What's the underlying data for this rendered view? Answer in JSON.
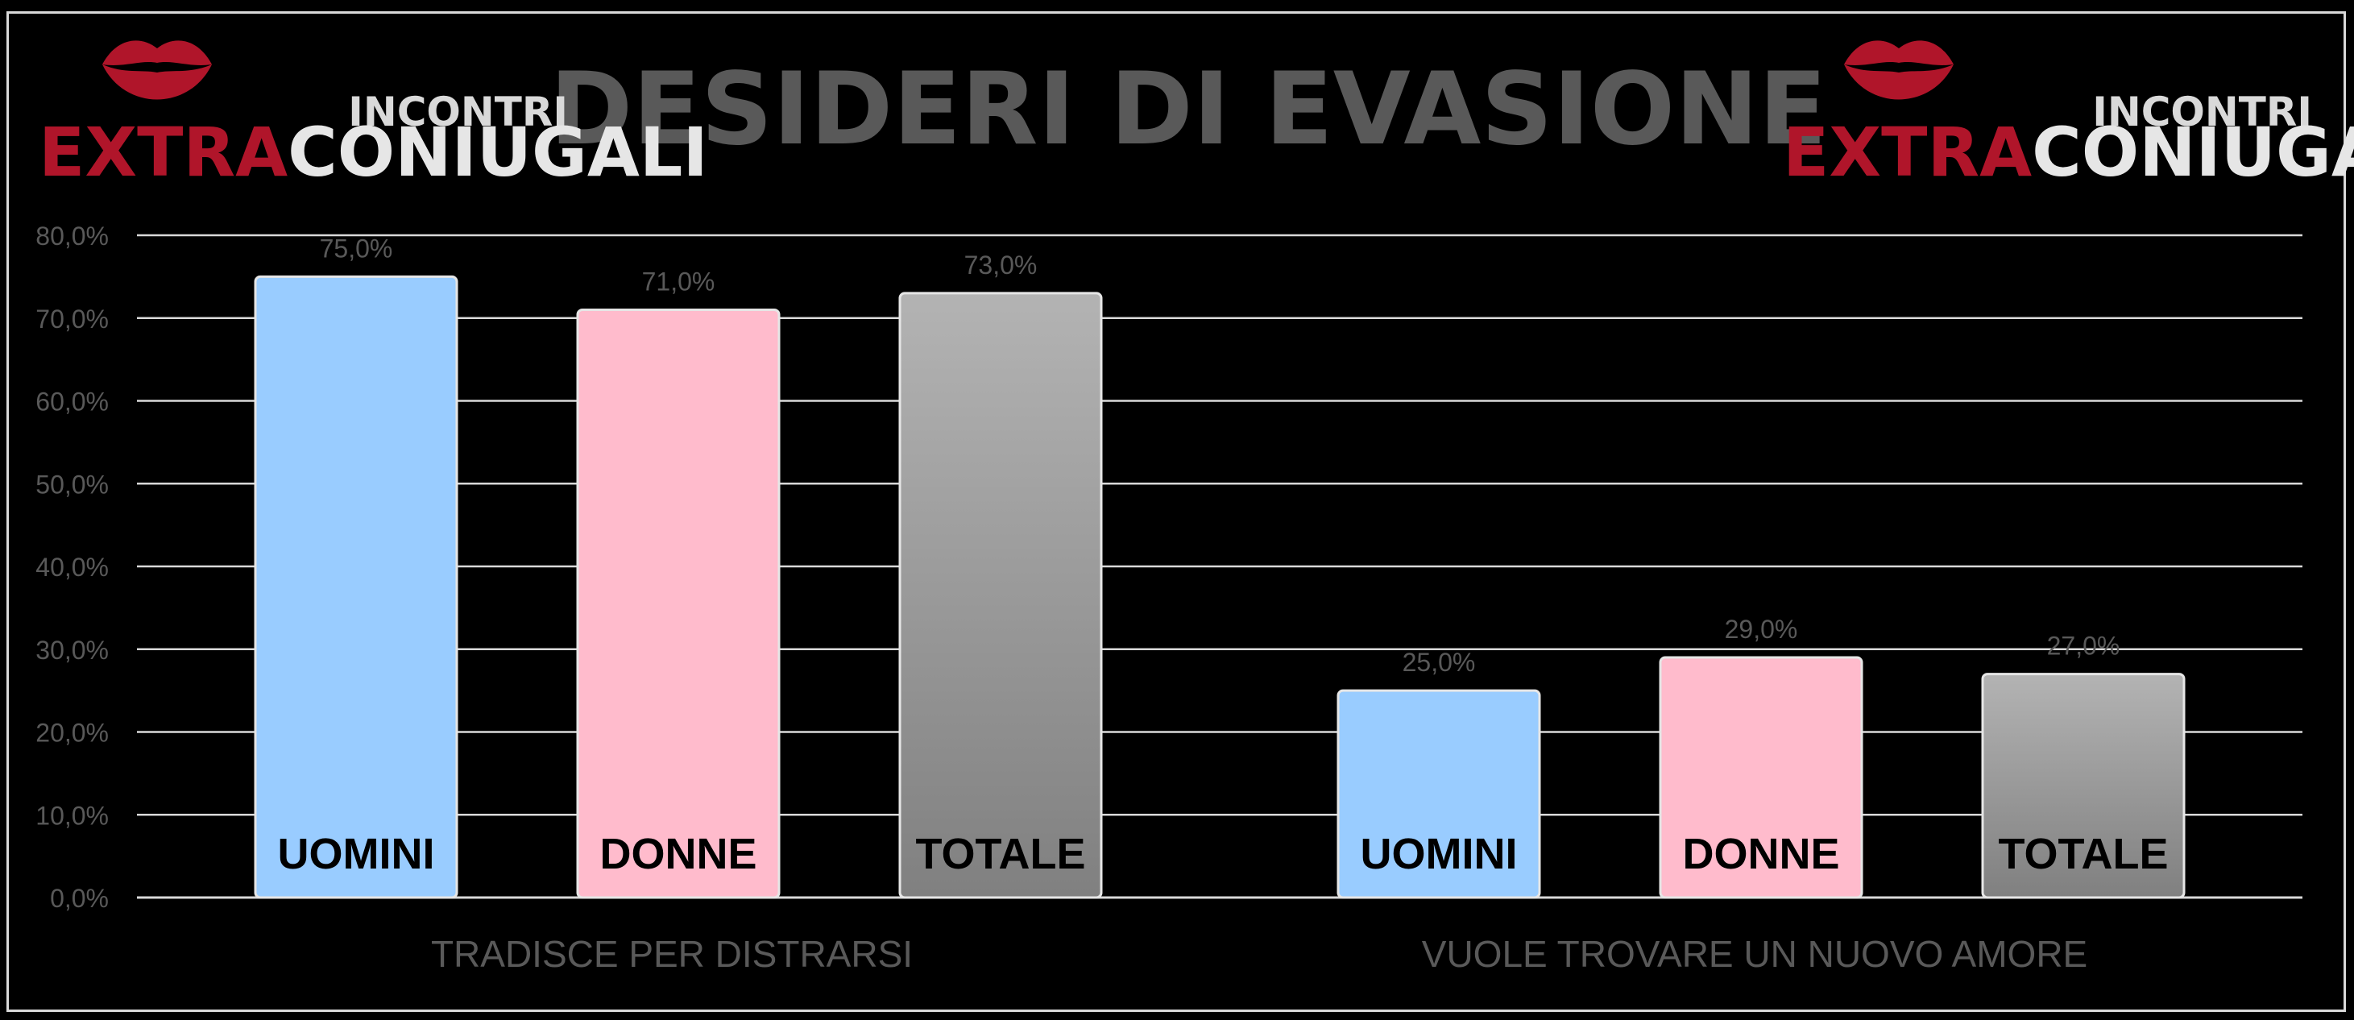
{
  "title": "DESIDERI DI EVASIONE",
  "logo": {
    "top_word": "INCONTRI",
    "word_red": "EXTRA",
    "word_white": "CONIUGALI"
  },
  "colors": {
    "uomini": "#99ccff",
    "donne": "#ffbbcc",
    "totale_top": "#b3b3b3",
    "totale_bottom": "#808080",
    "grid": "#d9d9d9",
    "text": "#595959",
    "logo_red": "#b0152a"
  },
  "chart_data": {
    "type": "bar",
    "title": "DESIDERI DI EVASIONE",
    "categories": [
      "TRADISCE PER DISTRARSI",
      "VUOLE TROVARE UN NUOVO AMORE"
    ],
    "series": [
      {
        "name": "UOMINI",
        "values": [
          75.0,
          25.0
        ]
      },
      {
        "name": "DONNE",
        "values": [
          71.0,
          29.0
        ]
      },
      {
        "name": "TOTALE",
        "values": [
          73.0,
          27.0
        ]
      }
    ],
    "data_labels": [
      [
        "75,0%",
        "25,0%"
      ],
      [
        "71,0%",
        "29,0%"
      ],
      [
        "73,0%",
        "27,0%"
      ]
    ],
    "yticks": [
      "0,0%",
      "10,0%",
      "20,0%",
      "30,0%",
      "40,0%",
      "50,0%",
      "60,0%",
      "70,0%",
      "80,0%"
    ],
    "ylim": [
      0,
      80
    ],
    "grid": true,
    "legend": "none"
  }
}
